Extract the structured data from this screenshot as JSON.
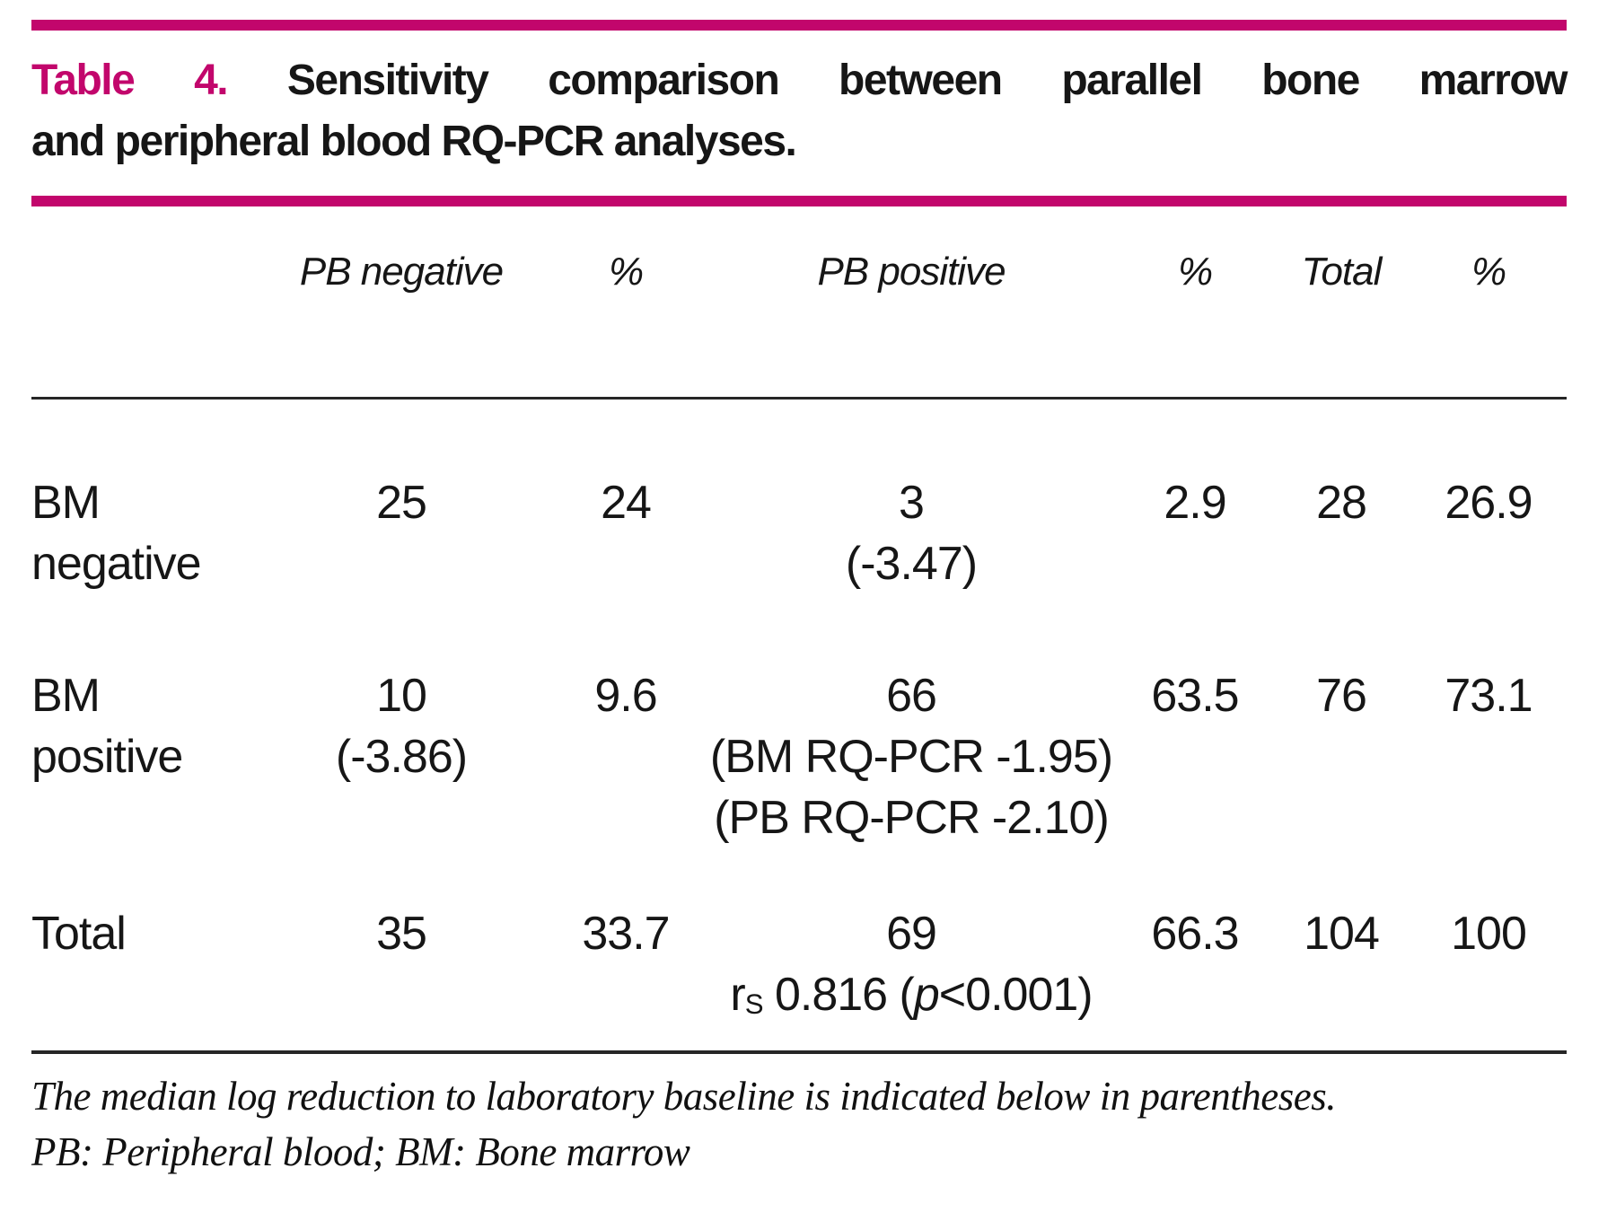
{
  "accent_color": "#c2066c",
  "title": {
    "tag": "Table 4.",
    "line1_rest": "Sensitivity comparison between parallel bone marrow",
    "line2": "and peripheral blood RQ-PCR analyses."
  },
  "table": {
    "headers": [
      "PB negative",
      "%",
      "PB positive",
      "%",
      "Total",
      "%"
    ],
    "rows": [
      {
        "label": "BM negative",
        "cells": [
          {
            "lines": [
              "25"
            ]
          },
          {
            "lines": [
              "24"
            ]
          },
          {
            "lines": [
              "3",
              "(-3.47)"
            ]
          },
          {
            "lines": [
              "2.9"
            ]
          },
          {
            "lines": [
              "28"
            ]
          },
          {
            "lines": [
              "26.9"
            ]
          }
        ]
      },
      {
        "label": "BM positive",
        "cells": [
          {
            "lines": [
              "10",
              "(-3.86)"
            ]
          },
          {
            "lines": [
              "9.6"
            ]
          },
          {
            "lines": [
              "66",
              "(BM RQ-PCR -1.95)",
              "(PB RQ-PCR -2.10)"
            ]
          },
          {
            "lines": [
              "63.5"
            ]
          },
          {
            "lines": [
              "76"
            ]
          },
          {
            "lines": [
              "73.1"
            ]
          }
        ]
      },
      {
        "label": "Total",
        "cells": [
          {
            "lines": [
              "35"
            ]
          },
          {
            "lines": [
              "33.7"
            ]
          },
          {
            "lines": [
              "69"
            ]
          },
          {
            "lines": [
              "66.3"
            ]
          },
          {
            "lines": [
              "104"
            ]
          },
          {
            "lines": [
              "100"
            ]
          }
        ],
        "stat": {
          "r": "r",
          "sub": "S",
          "mid": " 0.816 (",
          "p": "p",
          "end": "<0.001)"
        }
      }
    ]
  },
  "footnotes": {
    "line1": "The median log reduction to laboratory baseline is indicated below in parentheses.",
    "line2": "PB: Peripheral blood; BM: Bone marrow"
  }
}
